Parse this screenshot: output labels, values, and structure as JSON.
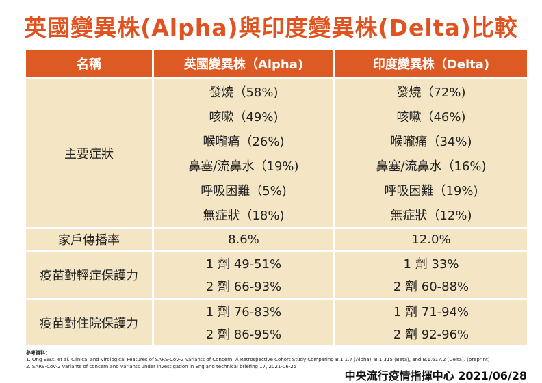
{
  "title": "英國變異株(Alpha)與印度變異株(Delta)比較",
  "header": [
    "名稱",
    "英國變異株（Alpha)",
    "印度變異株（Delta)"
  ],
  "rows": [
    {
      "label": "主要症狀",
      "alpha": [
        "發燒（58%)",
        "咳嗽（49%)",
        "喉嚨痛（26%)",
        "鼻塞/流鼻水（19%)",
        "呼吸困難（5%)",
        "無症狀（18%)"
      ],
      "delta": [
        "發燒（72%)",
        "咳嗽（46%)",
        "喉嚨痛（34%)",
        "鼻塞/流鼻水（16%)",
        "呼吸困難（19%)",
        "無症狀（12%)"
      ]
    },
    {
      "label": "家戶傳播率",
      "alpha": [
        "8.6%"
      ],
      "delta": [
        "12.0%"
      ]
    },
    {
      "label": "疫苗對輕症保護力",
      "alpha": [
        "1 劑 49-51%",
        "2 劑 66-93%"
      ],
      "delta": [
        "1 劑 33%",
        "2 劑 60-88%"
      ]
    },
    {
      "label": "疫苗對住院保護力",
      "alpha": [
        "1 劑 76-83%",
        "2 劑 86-95%"
      ],
      "delta": [
        "1 劑 71-94%",
        "2 劑 92-96%"
      ]
    }
  ],
  "references": {
    "heading": "參考資料：",
    "items": [
      "1. Ong SWX, et al. Clinical and Virological Features of SARS-CoV-2 Variants of Concern: A Retrospective Cohort Study Comparing B.1.1.7 (Alpha), B.1.315 (Beta), and B.1.617.2 (Delta). (preprint)",
      "2. SARS-CoV-2 variants of concern and variants under investigation in England technical briefing 17, 2021-06-25"
    ]
  },
  "source": "中央流行疫情指揮中心 2021/06/28",
  "colors": {
    "accent": "#de5a24",
    "cell": "#f4e6c4",
    "title": "#e0521f"
  }
}
